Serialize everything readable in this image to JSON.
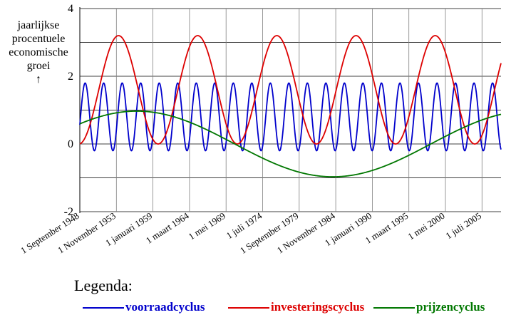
{
  "chart_data": {
    "type": "line",
    "ylabel_lines": [
      "jaarlijkse",
      "procentuele",
      "economische",
      "groei",
      "↑"
    ],
    "ylim": [
      -2,
      4
    ],
    "y_ticks": [
      "4",
      "2",
      "0",
      "-2"
    ],
    "x_ticks": [
      "1 September 1948",
      "1 November 1953",
      "1 januari 1959",
      "1 maart 1964",
      "1 mei 1969",
      "1 juli 1974",
      "1 September 1979",
      "1 November 1984",
      "1 januari 1990",
      "1 maart 1995",
      "1 mei 2000",
      "1 juli 2005"
    ],
    "x_domain": [
      "1948-09-01",
      "2006-09-01"
    ],
    "grid": true,
    "series": [
      {
        "name": "voorraadcyclus",
        "color": "#0000cc",
        "formula": "sinusoid",
        "mean": 0.8,
        "amplitude": 1.0,
        "period_years": 2.55,
        "peak_year": 1949.4
      },
      {
        "name": "investeringscyclus",
        "color": "#dd0000",
        "formula": "sinusoid",
        "mean": 1.6,
        "amplitude": 1.6,
        "period_years": 10.9,
        "peak_year": 1954.0
      },
      {
        "name": "prijzencyclus",
        "color": "#007700",
        "formula": "sinusoid",
        "mean": 0.0,
        "amplitude": 0.97,
        "period_years": 54.0,
        "peak_year": 1956.5
      }
    ]
  },
  "legend": {
    "title": "Legenda:",
    "items": [
      "voorraadcyclus",
      "investeringscyclus",
      "prijzencyclus"
    ]
  }
}
